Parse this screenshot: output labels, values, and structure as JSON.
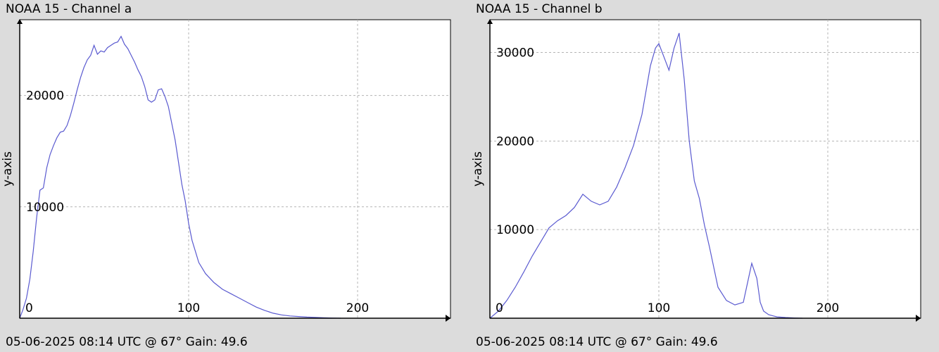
{
  "panels": [
    {
      "title": "NOAA 15 - Channel a",
      "footer": "05-06-2025 08:14 UTC @ 67° Gain: 49.6"
    },
    {
      "title": "NOAA 15 - Channel b",
      "footer": "05-06-2025 08:14 UTC @ 67° Gain: 49.6"
    }
  ],
  "colors": {
    "line": "#5a5ad0",
    "grid": "#b4b4b4",
    "plot_bg": "#ffffff",
    "axis": "#000000"
  },
  "chart_data": [
    {
      "type": "line",
      "title": "NOAA 15 - Channel a",
      "ylabel": "y-axis",
      "xlabel": "",
      "xlim": [
        0,
        255
      ],
      "ylim": [
        0,
        26800
      ],
      "grid": true,
      "x_ticks": [
        0,
        100,
        200
      ],
      "y_ticks": [
        10000,
        20000
      ],
      "x_tick_labels": [
        "0",
        "100",
        "200"
      ],
      "y_tick_labels": [
        "10000",
        "20000"
      ],
      "series": [
        {
          "x": [
            0,
            2,
            4,
            6,
            8,
            10,
            12,
            14,
            16,
            18,
            20,
            22,
            24,
            26,
            28,
            30,
            32,
            34,
            36,
            38,
            40,
            42,
            44,
            46,
            48,
            50,
            52,
            54,
            56,
            58,
            60,
            62,
            64,
            66,
            68,
            70,
            72,
            74,
            76,
            78,
            80,
            82,
            84,
            86,
            88,
            90,
            92,
            94,
            96,
            98,
            100,
            102,
            104,
            106,
            110,
            115,
            120,
            125,
            130,
            135,
            140,
            145,
            150,
            155,
            160,
            165,
            170,
            175,
            180,
            185,
            190
          ],
          "y": [
            0,
            800,
            1800,
            3500,
            6000,
            9000,
            11500,
            11700,
            13500,
            14700,
            15500,
            16200,
            16700,
            16800,
            17300,
            18200,
            19300,
            20500,
            21600,
            22500,
            23200,
            23600,
            24500,
            23700,
            24000,
            23900,
            24300,
            24500,
            24700,
            24800,
            25300,
            24600,
            24200,
            23600,
            23000,
            22300,
            21700,
            20800,
            19600,
            19400,
            19600,
            20500,
            20600,
            19900,
            19000,
            17500,
            16000,
            14000,
            12000,
            10500,
            8500,
            7000,
            6000,
            5000,
            4000,
            3200,
            2600,
            2200,
            1800,
            1400,
            1000,
            700,
            450,
            300,
            200,
            150,
            100,
            70,
            40,
            20,
            0
          ]
        }
      ]
    },
    {
      "type": "line",
      "title": "NOAA 15 - Channel b",
      "ylabel": "y-axis",
      "xlabel": "",
      "xlim": [
        0,
        255
      ],
      "ylim": [
        0,
        33700
      ],
      "grid": true,
      "x_ticks": [
        0,
        100,
        200
      ],
      "y_ticks": [
        10000,
        20000,
        30000
      ],
      "x_tick_labels": [
        "0",
        "100",
        "200"
      ],
      "y_tick_labels": [
        "10000",
        "20000",
        "30000"
      ],
      "series": [
        {
          "x": [
            0,
            5,
            10,
            15,
            20,
            25,
            30,
            35,
            40,
            45,
            50,
            55,
            60,
            65,
            70,
            75,
            80,
            85,
            90,
            95,
            98,
            100,
            103,
            106,
            109,
            112,
            115,
            118,
            121,
            124,
            127,
            130,
            135,
            140,
            145,
            150,
            155,
            158,
            160,
            162,
            165,
            168,
            170,
            175,
            180,
            185
          ],
          "y": [
            0,
            800,
            2000,
            3500,
            5200,
            7000,
            8600,
            10200,
            11000,
            11600,
            12500,
            14000,
            13200,
            12800,
            13200,
            14800,
            17000,
            19500,
            23000,
            28500,
            30500,
            31000,
            29500,
            28000,
            30500,
            32200,
            27000,
            20000,
            15500,
            13500,
            10500,
            8000,
            3500,
            2000,
            1500,
            1800,
            6200,
            4500,
            1800,
            800,
            400,
            250,
            150,
            80,
            30,
            0
          ]
        }
      ]
    }
  ]
}
